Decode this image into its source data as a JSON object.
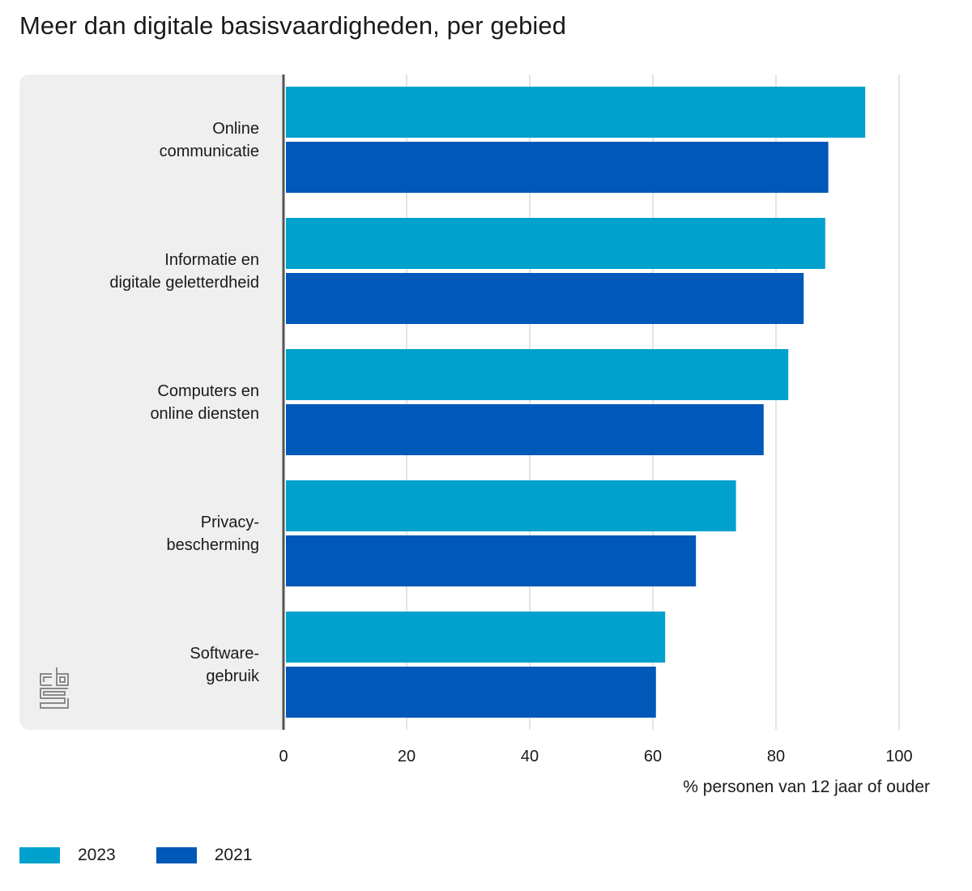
{
  "chart_data": {
    "type": "bar",
    "orientation": "horizontal",
    "title": "Meer dan digitale basisvaardigheden, per gebied",
    "xlabel": "% personen van 12 jaar of ouder",
    "categories": [
      "Online communicatie",
      "Informatie en digitale geletterdheid",
      "Computers en online diensten",
      "Privacy- bescherming",
      "Software- gebruik"
    ],
    "category_lines": [
      [
        "Online",
        "communicatie"
      ],
      [
        "Informatie en",
        "digitale geletterdheid"
      ],
      [
        "Computers en",
        "online diensten"
      ],
      [
        "Privacy-",
        "bescherming"
      ],
      [
        "Software-",
        "gebruik"
      ]
    ],
    "series": [
      {
        "name": "2023",
        "color": "#00a1cd",
        "values": [
          94.5,
          88,
          82,
          73.5,
          62
        ]
      },
      {
        "name": "2021",
        "color": "#0058b8",
        "values": [
          88.5,
          84.5,
          78,
          67,
          60.5
        ]
      }
    ],
    "xlim": [
      0,
      100
    ],
    "xticks": [
      "0",
      "20",
      "40",
      "60",
      "80",
      "100"
    ],
    "grid": true,
    "legend_position": "bottom-left"
  },
  "logo_icon": "cbs-logo-icon"
}
